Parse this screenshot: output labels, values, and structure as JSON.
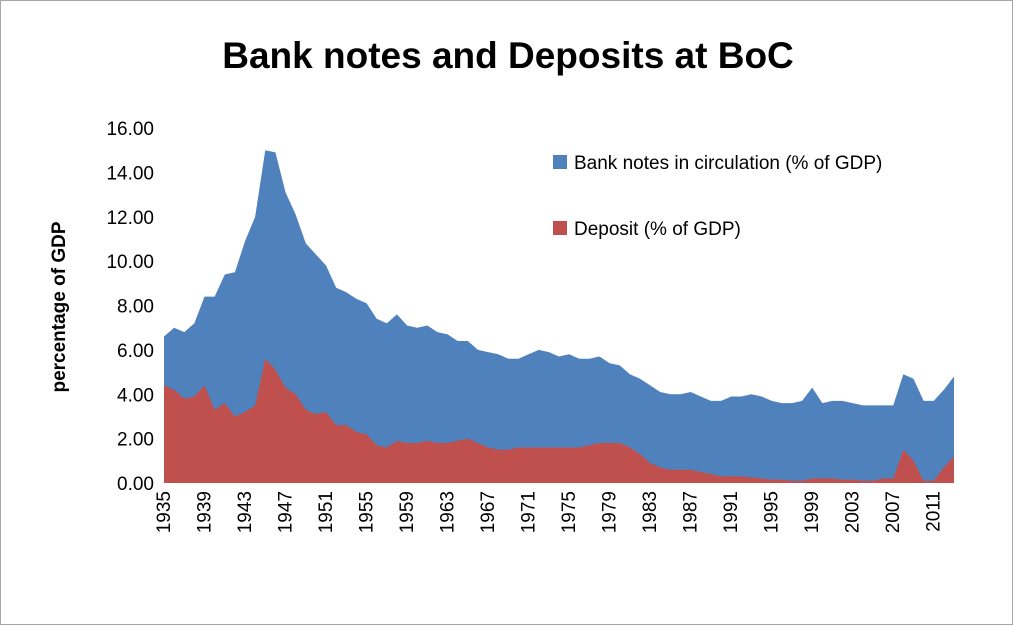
{
  "chart_data": {
    "type": "area",
    "title": "Bank notes and Deposits at BoC",
    "xlabel": "",
    "ylabel": "percentage of GDP",
    "ylim": [
      0,
      16
    ],
    "y_ticks": [
      "0.00",
      "2.00",
      "4.00",
      "6.00",
      "8.00",
      "10.00",
      "12.00",
      "14.00",
      "16.00"
    ],
    "x_tick_labels": [
      "1935",
      "1939",
      "1943",
      "1947",
      "1951",
      "1955",
      "1959",
      "1963",
      "1967",
      "1971",
      "1975",
      "1979",
      "1983",
      "1987",
      "1991",
      "1995",
      "1999",
      "2003",
      "2007",
      "2011"
    ],
    "grid": false,
    "legend_position": "right",
    "stacked": false,
    "x": [
      1935,
      1936,
      1937,
      1938,
      1939,
      1940,
      1941,
      1942,
      1943,
      1944,
      1945,
      1946,
      1947,
      1948,
      1949,
      1950,
      1951,
      1952,
      1953,
      1954,
      1955,
      1956,
      1957,
      1958,
      1959,
      1960,
      1961,
      1962,
      1963,
      1964,
      1965,
      1966,
      1967,
      1968,
      1969,
      1970,
      1971,
      1972,
      1973,
      1974,
      1975,
      1976,
      1977,
      1978,
      1979,
      1980,
      1981,
      1982,
      1983,
      1984,
      1985,
      1986,
      1987,
      1988,
      1989,
      1990,
      1991,
      1992,
      1993,
      1994,
      1995,
      1996,
      1997,
      1998,
      1999,
      2000,
      2001,
      2002,
      2003,
      2004,
      2005,
      2006,
      2007,
      2008,
      2009,
      2010,
      2011,
      2012,
      2013
    ],
    "series": [
      {
        "name": "Bank notes in circulation (% of GDP)",
        "color": "#4f81bd",
        "values": [
          6.6,
          7.0,
          6.8,
          7.2,
          8.4,
          8.4,
          9.4,
          9.5,
          10.9,
          12.0,
          15.0,
          14.9,
          13.1,
          12.1,
          10.8,
          10.3,
          9.8,
          8.8,
          8.6,
          8.3,
          8.1,
          7.4,
          7.2,
          7.6,
          7.1,
          7.0,
          7.1,
          6.8,
          6.7,
          6.4,
          6.4,
          6.0,
          5.9,
          5.8,
          5.6,
          5.6,
          5.8,
          6.0,
          5.9,
          5.7,
          5.8,
          5.6,
          5.6,
          5.7,
          5.4,
          5.3,
          4.9,
          4.7,
          4.4,
          4.1,
          4.0,
          4.0,
          4.1,
          3.9,
          3.7,
          3.7,
          3.9,
          3.9,
          4.0,
          3.9,
          3.7,
          3.6,
          3.6,
          3.7,
          4.3,
          3.6,
          3.7,
          3.7,
          3.6,
          3.5,
          3.5,
          3.5,
          3.5,
          4.9,
          4.7,
          3.7,
          3.7,
          4.2,
          4.8
        ]
      },
      {
        "name": "Deposit (% of GDP)",
        "color": "#c0504d",
        "values": [
          4.4,
          4.2,
          3.8,
          3.9,
          4.4,
          3.3,
          3.6,
          3.0,
          3.2,
          3.5,
          5.6,
          5.1,
          4.3,
          4.0,
          3.3,
          3.1,
          3.2,
          2.6,
          2.6,
          2.3,
          2.2,
          1.7,
          1.6,
          1.9,
          1.8,
          1.8,
          1.9,
          1.8,
          1.8,
          1.9,
          2.0,
          1.8,
          1.6,
          1.5,
          1.5,
          1.6,
          1.6,
          1.6,
          1.6,
          1.6,
          1.6,
          1.6,
          1.7,
          1.8,
          1.8,
          1.8,
          1.6,
          1.3,
          0.9,
          0.7,
          0.6,
          0.6,
          0.6,
          0.5,
          0.4,
          0.3,
          0.3,
          0.3,
          0.25,
          0.2,
          0.15,
          0.15,
          0.1,
          0.1,
          0.2,
          0.2,
          0.2,
          0.15,
          0.15,
          0.1,
          0.1,
          0.2,
          0.2,
          1.5,
          1.0,
          0.1,
          0.1,
          0.7,
          1.2
        ]
      }
    ]
  }
}
